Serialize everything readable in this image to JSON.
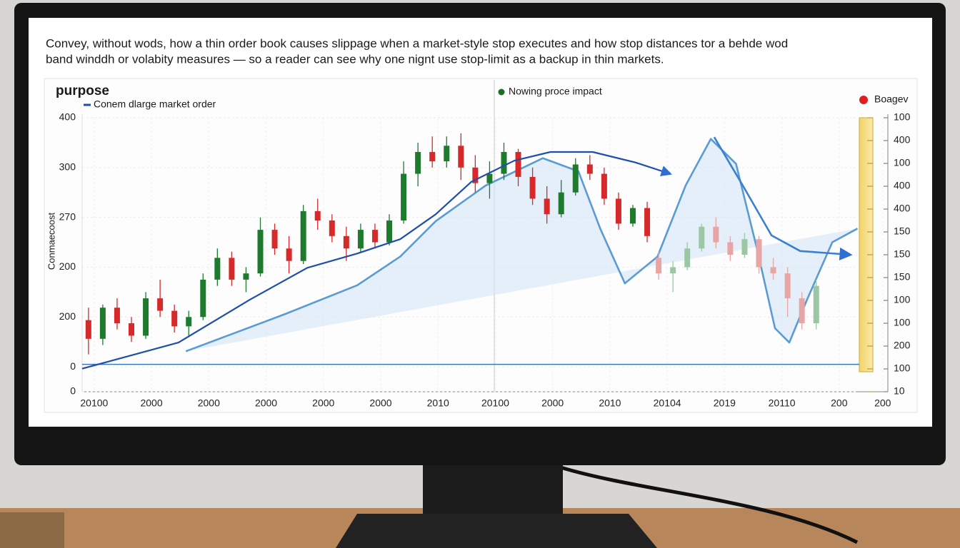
{
  "chart_data": {
    "type": "candlestick",
    "title_lines": [
      "Convey, without wods, how a thin order book causes slippage when a market-style stop executes and how stop distances tor a behde wod",
      "band winddh or volabity measures — so a reader can see why one nignt use stop-limit as a backup in thin markets."
    ],
    "heading": "purpose",
    "y_label": "Conmaecoost",
    "grid": true,
    "xlim": [
      -0.21,
      13.85
    ],
    "xticks": [
      {
        "value": 0,
        "label": "20100"
      },
      {
        "value": 1,
        "label": "2000"
      },
      {
        "value": 2,
        "label": "2000"
      },
      {
        "value": 3,
        "label": "2000"
      },
      {
        "value": 4,
        "label": "2000"
      },
      {
        "value": 5,
        "label": "2000"
      },
      {
        "value": 6,
        "label": "2010"
      },
      {
        "value": 7,
        "label": "20100"
      },
      {
        "value": 8,
        "label": "2000"
      },
      {
        "value": 9,
        "label": "2010"
      },
      {
        "value": 10,
        "label": "20104"
      },
      {
        "value": 11,
        "label": "2019"
      },
      {
        "value": 12,
        "label": "20110"
      },
      {
        "value": 13,
        "label": "200"
      },
      {
        "value": 13.76,
        "label": "200"
      }
    ],
    "ylim": [
      -40,
      400
    ],
    "yticks": [
      400,
      {
        "value": 320,
        "label": "300"
      },
      {
        "value": 240,
        "label": "270"
      },
      {
        "value": 160,
        "label": "200"
      },
      {
        "value": 80,
        "label": "200"
      },
      0,
      {
        "value": -40,
        "label": "0"
      }
    ],
    "y2lim": [
      0,
      120
    ],
    "y2ticks": [
      {
        "value": 120,
        "label": "100"
      },
      {
        "value": 110,
        "label": "400"
      },
      100,
      {
        "value": 90,
        "label": "400"
      },
      {
        "value": 80,
        "label": "400"
      },
      {
        "value": 70,
        "label": "150"
      },
      {
        "value": 60,
        "label": "150"
      },
      {
        "value": 50,
        "label": "150"
      },
      {
        "value": 40,
        "label": "100"
      },
      {
        "value": 30,
        "label": "100"
      },
      {
        "value": 20,
        "label": "200"
      },
      {
        "value": 10,
        "label": "100"
      },
      {
        "value": 0,
        "label": "10"
      }
    ],
    "candles": {
      "up_color": "#1e7b2e",
      "down_color": "#d62a2a",
      "x": [
        -0.1,
        0.15,
        0.4,
        0.65,
        0.9,
        1.15,
        1.4,
        1.65,
        1.9,
        2.15,
        2.4,
        2.65,
        2.9,
        3.15,
        3.4,
        3.65,
        3.9,
        4.15,
        4.4,
        4.65,
        4.9,
        5.15,
        5.4,
        5.65,
        5.9,
        6.15,
        6.4,
        6.65,
        6.9,
        7.15,
        7.4,
        7.65,
        7.9,
        8.15,
        8.4,
        8.65,
        8.9,
        9.15,
        9.4,
        9.65
      ],
      "open": [
        75,
        45,
        95,
        70,
        50,
        110,
        90,
        65,
        80,
        140,
        175,
        140,
        150,
        220,
        190,
        170,
        250,
        235,
        210,
        190,
        220,
        200,
        235,
        310,
        345,
        330,
        355,
        320,
        295,
        310,
        345,
        305,
        270,
        245,
        280,
        325,
        310,
        270,
        230,
        255
      ],
      "high": [
        95,
        100,
        110,
        80,
        120,
        140,
        100,
        90,
        150,
        190,
        185,
        160,
        240,
        230,
        210,
        260,
        270,
        245,
        225,
        230,
        230,
        245,
        330,
        360,
        370,
        370,
        375,
        340,
        330,
        360,
        350,
        320,
        290,
        300,
        335,
        340,
        320,
        280,
        260,
        265
      ],
      "low": [
        20,
        35,
        60,
        40,
        45,
        80,
        55,
        50,
        75,
        130,
        130,
        120,
        145,
        180,
        150,
        165,
        220,
        200,
        170,
        185,
        190,
        195,
        230,
        290,
        320,
        320,
        300,
        280,
        270,
        300,
        290,
        260,
        230,
        240,
        275,
        300,
        260,
        220,
        225,
        200
      ],
      "close": [
        45,
        95,
        70,
        50,
        110,
        90,
        65,
        80,
        140,
        175,
        140,
        150,
        220,
        190,
        170,
        250,
        235,
        210,
        190,
        220,
        200,
        235,
        310,
        345,
        330,
        355,
        320,
        295,
        310,
        345,
        305,
        270,
        245,
        280,
        325,
        310,
        270,
        230,
        255,
        210
      ]
    },
    "faded_candles": {
      "up_color": "#9cc7a4",
      "down_color": "#e8a5a5",
      "x": [
        9.85,
        10.1,
        10.35,
        10.6,
        10.85,
        11.1,
        11.35,
        11.6,
        11.85,
        12.1,
        12.35,
        12.6
      ],
      "open": [
        175,
        150,
        160,
        190,
        225,
        200,
        180,
        205,
        160,
        150,
        110,
        70
      ],
      "high": [
        185,
        170,
        200,
        230,
        240,
        210,
        215,
        210,
        175,
        160,
        120,
        140
      ],
      "low": [
        140,
        120,
        155,
        185,
        190,
        170,
        175,
        150,
        140,
        80,
        60,
        60
      ],
      "close": [
        150,
        160,
        190,
        225,
        200,
        180,
        205,
        160,
        150,
        110,
        70,
        130
      ]
    },
    "lines": [
      {
        "name": "Conem dlarge market order",
        "color": "#1f4fa8",
        "arrow": true,
        "x": [
          -0.21,
          1.47,
          2.72,
          3.72,
          4.59,
          5.34,
          5.96,
          6.58,
          7.33,
          7.96,
          8.7,
          9.45,
          10.05
        ],
        "y": [
          -3,
          39,
          108,
          159,
          182,
          205,
          245,
          297,
          331,
          345,
          345,
          328,
          310
        ]
      },
      {
        "color": "#5a9bd4",
        "fill": "#cfe3f6",
        "x": [
          1.6,
          3.34,
          4.59,
          5.34,
          5.96,
          6.83,
          7.83,
          8.45,
          8.83,
          9.26,
          9.83,
          10.32,
          10.76,
          11.2,
          11.57,
          11.88,
          12.13,
          12.44,
          12.88,
          13.32
        ],
        "y": [
          25,
          85,
          131,
          177,
          234,
          291,
          335,
          314,
          222,
          134,
          177,
          291,
          366,
          326,
          188,
          62,
          39,
          108,
          200,
          222
        ]
      },
      {
        "color": "#3b7fd0",
        "arrow": true,
        "x": [
          10.82,
          11.32,
          11.82,
          12.32,
          13.19
        ],
        "y": [
          369,
          291,
          211,
          186,
          180
        ]
      }
    ],
    "reference_line": {
      "value": 4,
      "color": "#3a78b8"
    },
    "legend": [
      {
        "label": "Nowing proce impact",
        "color": "#1e6b2a"
      },
      {
        "label": "Boagev",
        "color": "#e02020"
      }
    ]
  }
}
